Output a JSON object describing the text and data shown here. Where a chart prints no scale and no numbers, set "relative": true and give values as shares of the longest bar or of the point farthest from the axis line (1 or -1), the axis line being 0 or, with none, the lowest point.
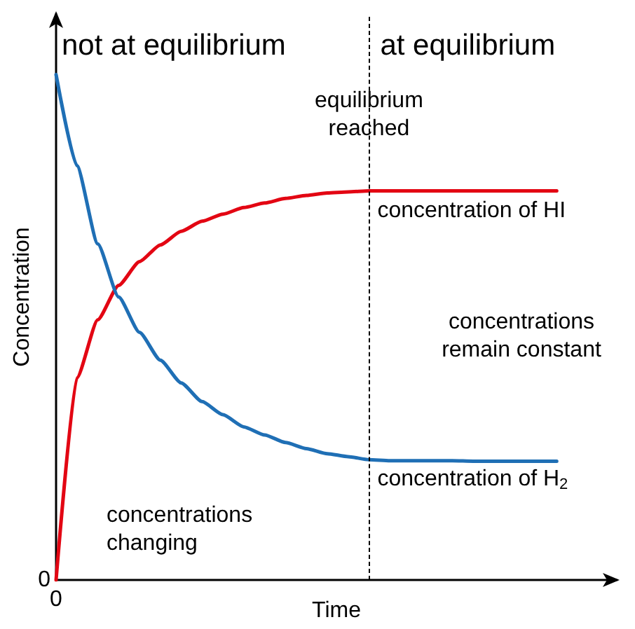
{
  "chart_data": {
    "type": "line",
    "relative": true,
    "xlabel": "Time",
    "ylabel": "Concentration",
    "grid": false,
    "legend": false,
    "marker": "none",
    "line_style": "solid",
    "categories": [
      null,
      null,
      null,
      null,
      null,
      null,
      null,
      null,
      null,
      null,
      null,
      null,
      null,
      null,
      null,
      null,
      null,
      null,
      null,
      null,
      null,
      null,
      null,
      null,
      null
    ],
    "series": [
      {
        "name": "concentration of HI",
        "color": "#e30613",
        "values": [
          0,
          0.4,
          0.515,
          0.583,
          0.63,
          0.663,
          0.69,
          0.71,
          0.724,
          0.737,
          0.746,
          0.755,
          0.761,
          0.766,
          0.768,
          0.77,
          0.77,
          0.77,
          0.77,
          0.77,
          0.77,
          0.77,
          0.77,
          0.77,
          0.77
        ]
      },
      {
        "name": "concentration of H$_{2}$",
        "color": "#1f6fb5",
        "values": [
          1,
          0.82,
          0.665,
          0.56,
          0.49,
          0.435,
          0.39,
          0.353,
          0.327,
          0.303,
          0.287,
          0.272,
          0.26,
          0.25,
          0.244,
          0.238,
          0.236,
          0.236,
          0.236,
          0.236,
          0.235,
          0.235,
          0.235,
          0.235,
          0.235
        ]
      }
    ],
    "annotations": [
      "0",
      "0",
      "not at equilibrium",
      "at equilibrium",
      "equilibrium\nreached",
      "concentrations\nremain constant",
      "concentrations\nchanging"
    ]
  }
}
